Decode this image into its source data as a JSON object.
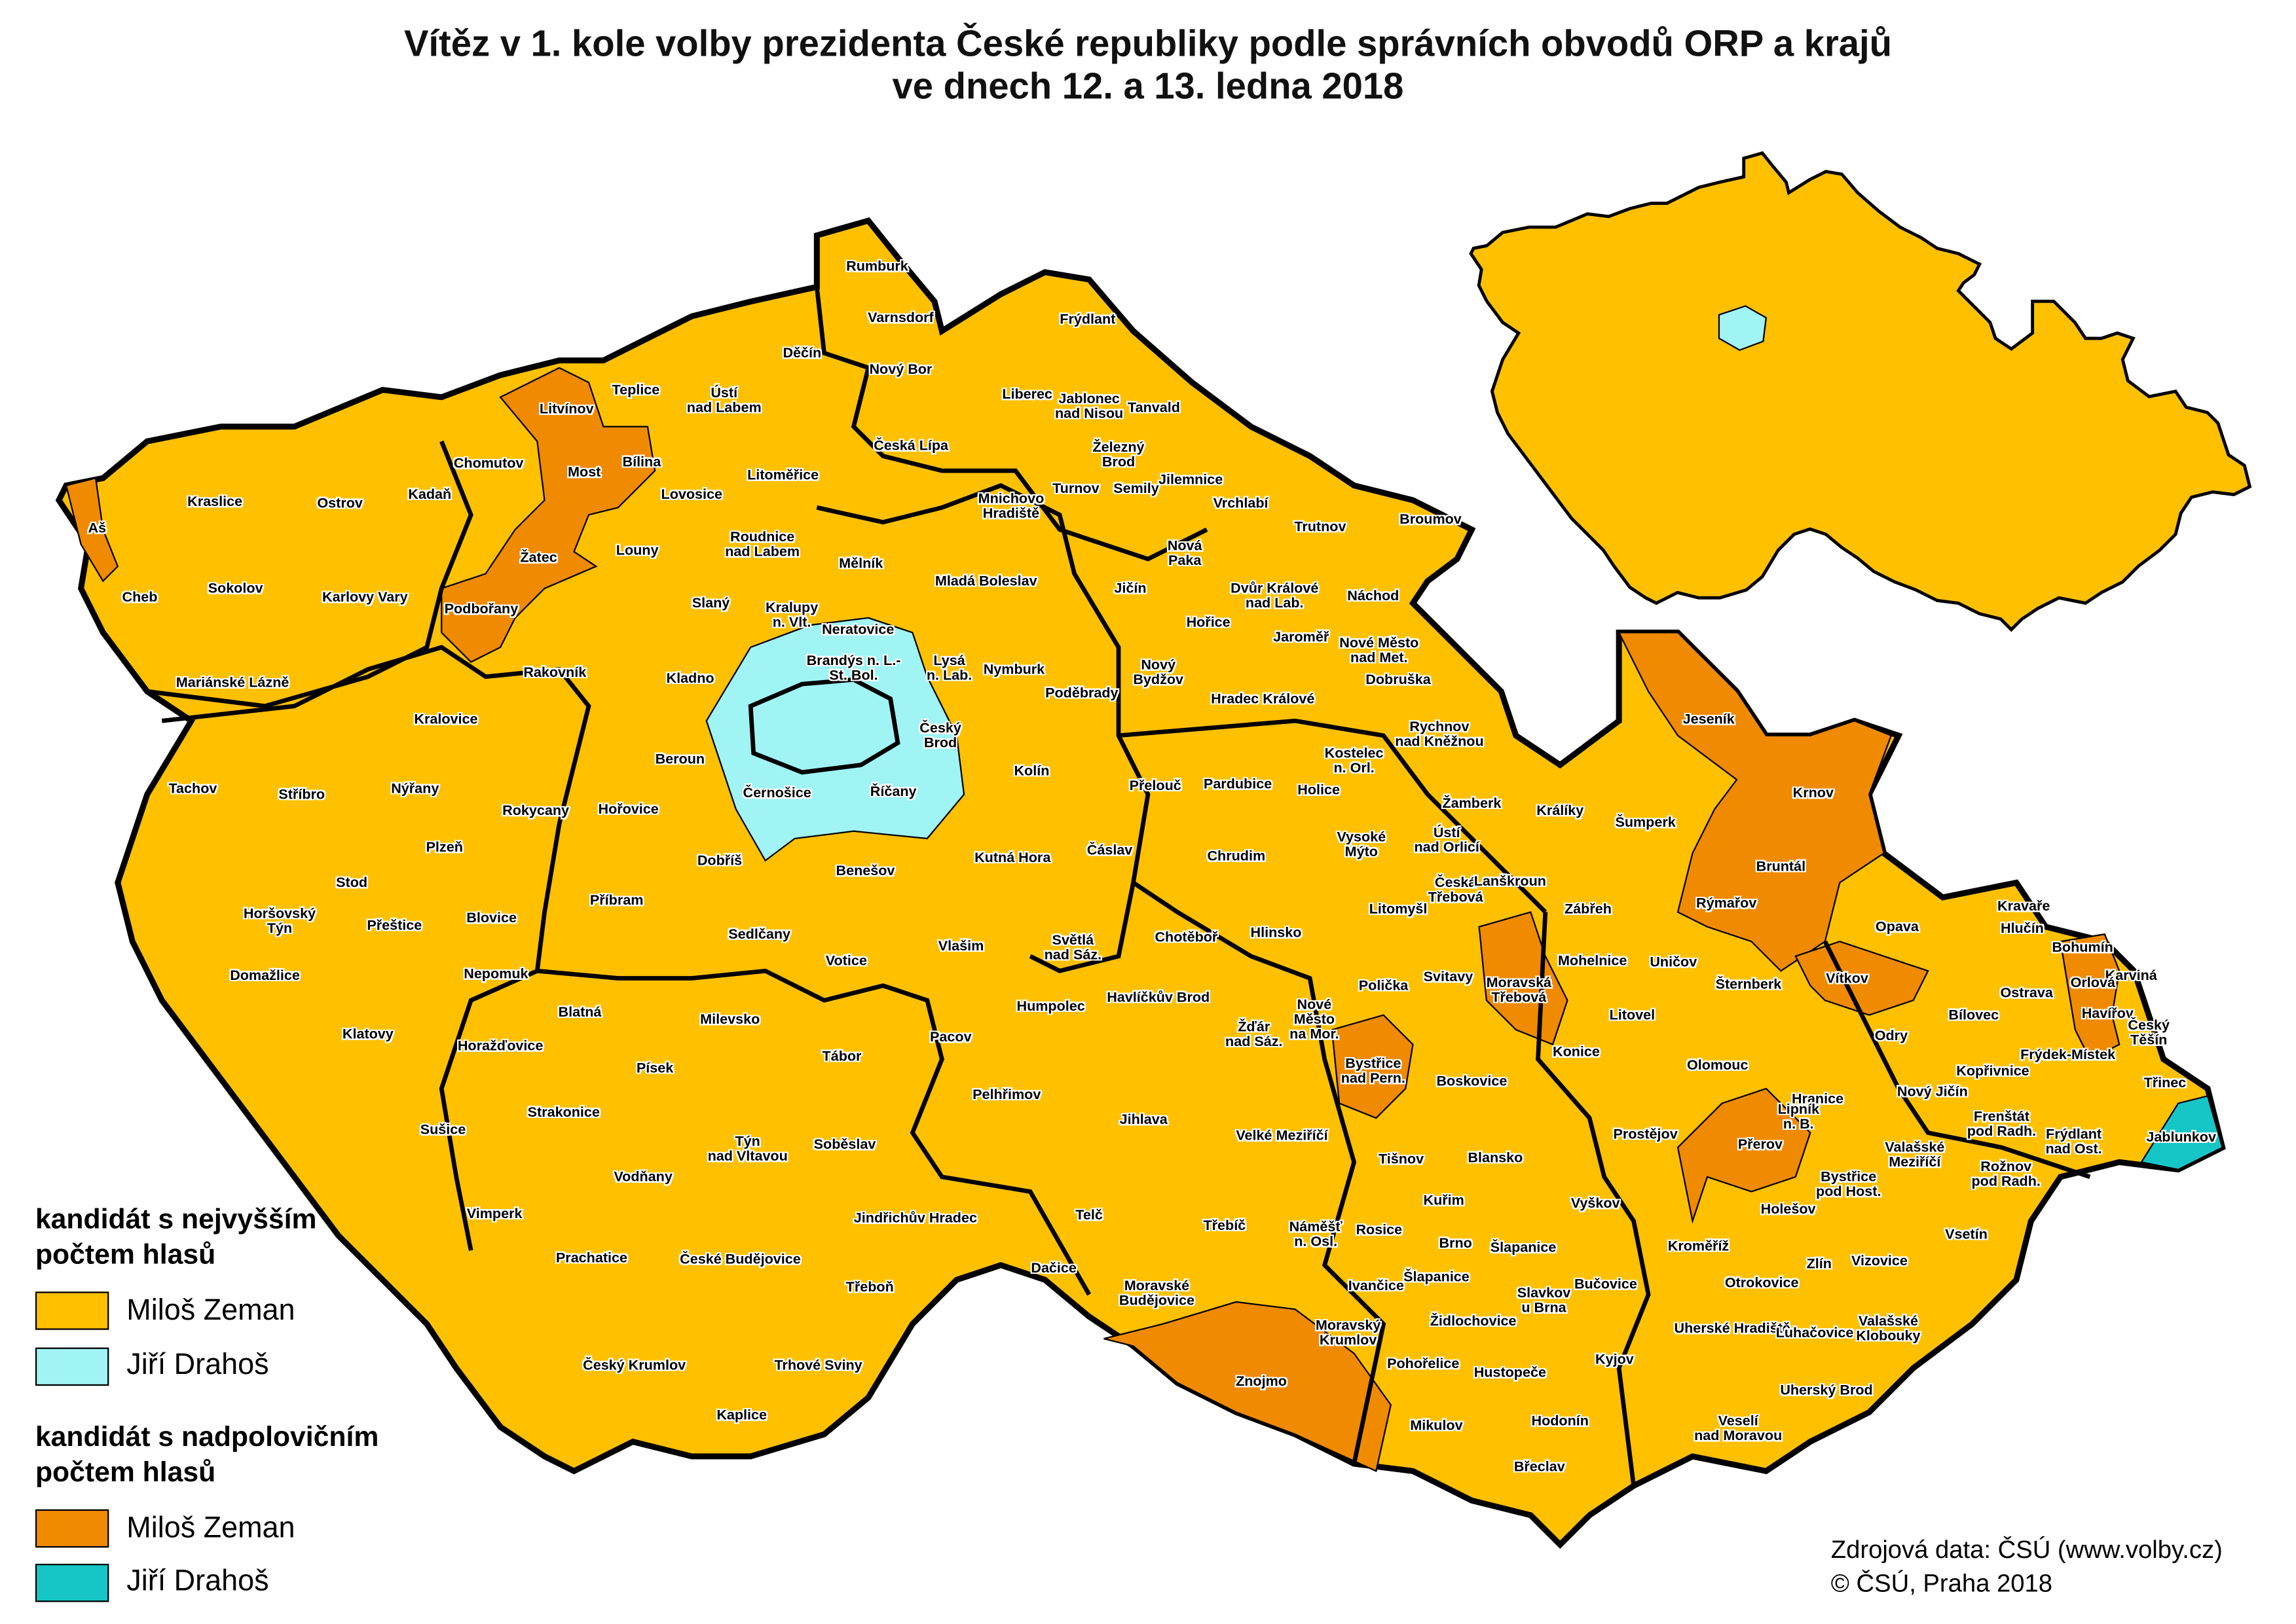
{
  "title": {
    "line1": "Vítěz v 1. kole volby prezidenta České republiky podle správních obvodů ORP a krajů",
    "line2": "ve dnech 12. a 13. ledna 2018"
  },
  "legend": {
    "group1_title": "kandidát s nejvyšším\npočtem hlasů",
    "group1_items": [
      {
        "label": "Miloš Zeman",
        "color": "#FFC000"
      },
      {
        "label": "Jiří Drahoš",
        "color": "#A0F4F4"
      }
    ],
    "group2_title": "kandidát s nadpolovičním\npočtem hlasů",
    "group2_items": [
      {
        "label": "Miloš Zeman",
        "color": "#F08A00"
      },
      {
        "label": "Jiří Drahoš",
        "color": "#16C6C6"
      }
    ]
  },
  "source": {
    "line1": "Zdrojová data: ČSÚ (www.volby.cz)",
    "line2": "© ČSÚ, Praha 2018"
  },
  "map": {
    "labels": [
      "Rumburk",
      "Varnsdorf",
      "Děčín",
      "Frýdlant",
      "Nový Bor",
      "Teplice",
      "Ústí\nnad Labem",
      "Litvínov",
      "Liberec",
      "Jablonec\nnad Nisou",
      "Tanvald",
      "Chomutov",
      "Most",
      "Bílina",
      "Česká Lípa",
      "Železný\nBrod",
      "Litoměřice",
      "Turnov",
      "Semily",
      "Jilemnice",
      "Kraslice",
      "Ostrov",
      "Kadaň",
      "Lovosice",
      "Mnichovo\nHradiště",
      "Vrchlabí",
      "Trutnov",
      "Broumov",
      "Aš",
      "Roudnice\nnad Labem",
      "Žatec",
      "Louny",
      "Nová\nPaka",
      "Mělník",
      "Mladá Boleslav",
      "Cheb",
      "Sokolov",
      "Karlovy Vary",
      "Podbořany",
      "Slaný",
      "Kralupy\nn. Vlt.",
      "Neratovice",
      "Jičín",
      "Dvůr Králové\nnad Lab.",
      "Náchod",
      "Hořice",
      "Jaroměř",
      "Nové Město\nnad Met.",
      "Brandýs n. L.-\nSt. Bol.",
      "Lysá\nn. Lab.",
      "Nymburk",
      "Dobruška",
      "Rakovník",
      "Kladno",
      "Nový\nBydžov",
      "Mariánské Lázně",
      "Poděbrady",
      "Hradec Králové",
      "Kralovice",
      "Rychnov\nnad Kněžnou",
      "Jeseník",
      "Beroun",
      "Český\nBrod",
      "Kolín",
      "Kostelec\nn. Orl.",
      "Krnov",
      "Tachov",
      "Stříbro",
      "Nýřany",
      "Rokycany",
      "Přelouč",
      "Pardubice",
      "Holice",
      "Žamberk",
      "Králíky",
      "Hořovice",
      "Černošice",
      "Říčany",
      "Šumperk",
      "Plzeň",
      "Vysoké\nMýto",
      "Ústí\nnad Orlicí",
      "Chrudim",
      "Čáslav",
      "Dobříš",
      "Kutná Hora",
      "Bruntál",
      "Benešov",
      "Stod",
      "Česká\nTřebová",
      "Lanškroun",
      "Příbram",
      "Zábřeh",
      "Litomyšl",
      "Rýmařov",
      "Horšovský\nTýn",
      "Přeštice",
      "Blovice",
      "Kravaře",
      "Sedlčany",
      "Světlá\nnad Sáz.",
      "Chotěboř",
      "Hlinsko",
      "Opava",
      "Hlučín",
      "Bohumín",
      "Vlašim",
      "Votice",
      "Karviná",
      "Domažlice",
      "Nepomuk",
      "Mohelnice",
      "Uničov",
      "Vítkov",
      "Polička",
      "Svitavy",
      "Moravská\nTřebová",
      "Orlová",
      "Šternberk",
      "Ostrava",
      "Blatná",
      "Humpolec",
      "Havlíčkův Brod",
      "Nové\nMěsto\nna Mor.",
      "Havířov",
      "Český\nTěšín",
      "Milevsko",
      "Litovel",
      "Bílovec",
      "Klatovy",
      "Odry",
      "Pacov",
      "Žďár\nnad Sáz.",
      "Horažďovice",
      "Frýdek-Místek",
      "Tábor",
      "Písek",
      "Bystřice\nnad Pern.",
      "Konice",
      "Olomouc",
      "Kopřivnice",
      "Boskovice",
      "Třinec",
      "Pelhřimov",
      "Hranice",
      "Nový Jičín",
      "Lipník\nn. B.",
      "Strakonice",
      "Jihlava",
      "Prostějov",
      "Valašské\nMeziříčí",
      "Frenštát\npod Radh.",
      "Frýdlant\nnad Ost.",
      "Jablunkov",
      "Sušice",
      "Velké Meziříčí",
      "Přerov",
      "Týn\nnad Vltavou",
      "Soběslav",
      "Blansko",
      "Tišnov",
      "Vodňany",
      "Bystřice\npod Host.",
      "Rožnov\npod Radh.",
      "Holešov",
      "Vimperk",
      "Jindřichův Hradec",
      "Kuřim",
      "Vyškov",
      "Telč",
      "Třebíč",
      "Náměšť\nn. Osl.",
      "Rosice",
      "Vsetín",
      "Brno",
      "Prachatice",
      "České Budějovice",
      "Šlapanice",
      "Kroměříž",
      "Zlín",
      "Vizovice",
      "Dačice",
      "Třeboň",
      "Moravské\nBudějovice",
      "Šlapanice",
      "Ivančice",
      "Otrokovice",
      "Slavkov\nu Brna",
      "Bučovice",
      "Moravský\nKrumlov",
      "Židlochovice",
      "Uherské Hradiště",
      "Luhačovice",
      "Valašské\nKlobouky",
      "Český Krumlov",
      "Trhové Sviny",
      "Pohořelice",
      "Hustopeče",
      "Kyjov",
      "Znojmo",
      "Uherský Brod",
      "Kaplice",
      "Mikulov",
      "Hodonín",
      "Veselí\nnad Moravou",
      "Břeclav"
    ]
  }
}
